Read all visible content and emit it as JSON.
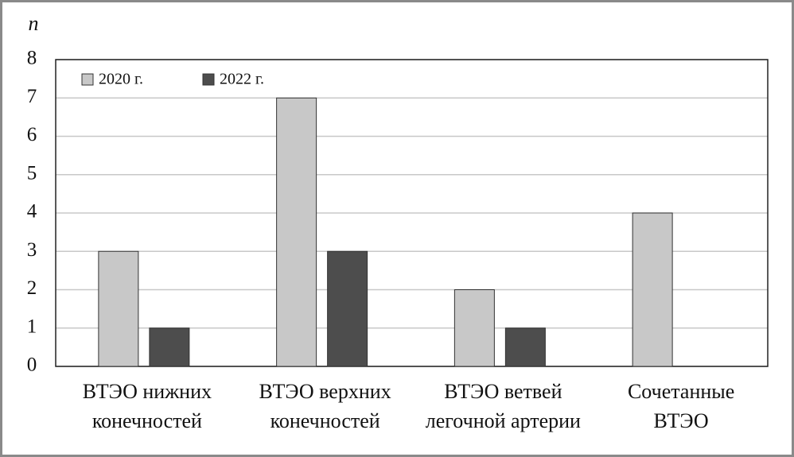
{
  "chart_data": {
    "type": "bar",
    "y_label": "n",
    "categories": [
      [
        "ВТЭО нижних",
        "конечностей"
      ],
      [
        "ВТЭО верхних",
        "конечностей"
      ],
      [
        "ВТЭО ветвей",
        "легочной артерии"
      ],
      [
        "Сочетанные",
        "ВТЭО"
      ]
    ],
    "series": [
      {
        "name": "2020 г.",
        "color": "#c8c8c8",
        "values": [
          3,
          7,
          2,
          4
        ]
      },
      {
        "name": "2022 г.",
        "color": "#4d4d4d",
        "values": [
          1,
          3,
          1,
          0
        ]
      }
    ],
    "ylim": [
      0,
      8
    ],
    "yticks": [
      0,
      1,
      2,
      3,
      4,
      5,
      6,
      7,
      8
    ],
    "grid": true,
    "legend": "top-left"
  }
}
